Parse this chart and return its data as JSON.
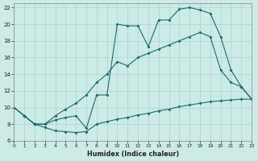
{
  "xlabel": "Humidex (Indice chaleur)",
  "bg_color": "#cceae6",
  "line_color": "#1a6b6b",
  "grid_color": "#aad4d0",
  "xlim": [
    0,
    23
  ],
  "ylim": [
    6,
    22.5
  ],
  "xticks": [
    0,
    1,
    2,
    3,
    4,
    5,
    6,
    7,
    8,
    9,
    10,
    11,
    12,
    13,
    14,
    15,
    16,
    17,
    18,
    19,
    20,
    21,
    22,
    23
  ],
  "yticks": [
    6,
    8,
    10,
    12,
    14,
    16,
    18,
    20,
    22
  ],
  "curve_bottom_x": [
    0,
    1,
    2,
    3,
    4,
    5,
    6,
    7,
    8,
    9,
    10,
    11,
    12,
    13,
    14,
    15,
    16,
    17,
    18,
    19,
    20,
    21,
    22,
    23
  ],
  "curve_bottom_y": [
    10.0,
    9.0,
    8.0,
    7.6,
    7.2,
    7.1,
    7.0,
    7.1,
    8.0,
    8.3,
    8.6,
    8.8,
    9.1,
    9.3,
    9.6,
    9.8,
    10.1,
    10.3,
    10.5,
    10.7,
    10.8,
    10.9,
    11.0,
    11.0
  ],
  "curve_mid_x": [
    0,
    1,
    2,
    3,
    4,
    5,
    6,
    7,
    8,
    9,
    10,
    11,
    12,
    13,
    14,
    15,
    16,
    17,
    18,
    19,
    20,
    21,
    22,
    23
  ],
  "curve_mid_y": [
    10.0,
    9.0,
    8.0,
    8.0,
    9.0,
    9.8,
    10.5,
    11.5,
    13.0,
    14.0,
    15.5,
    15.0,
    16.0,
    16.5,
    17.0,
    17.5,
    18.0,
    18.5,
    19.0,
    18.5,
    14.5,
    13.0,
    12.5,
    11.0
  ],
  "curve_top_x": [
    0,
    1,
    2,
    3,
    4,
    5,
    6,
    7,
    8,
    9,
    10,
    11,
    12,
    13,
    14,
    15,
    16,
    17,
    18,
    19,
    20,
    21,
    22,
    23
  ],
  "curve_top_y": [
    10.0,
    9.0,
    8.0,
    8.0,
    8.5,
    8.8,
    9.0,
    7.5,
    11.5,
    11.5,
    20.0,
    19.8,
    19.8,
    17.3,
    20.5,
    20.5,
    21.8,
    22.0,
    21.7,
    21.3,
    18.5,
    14.5,
    12.5,
    11.0
  ]
}
